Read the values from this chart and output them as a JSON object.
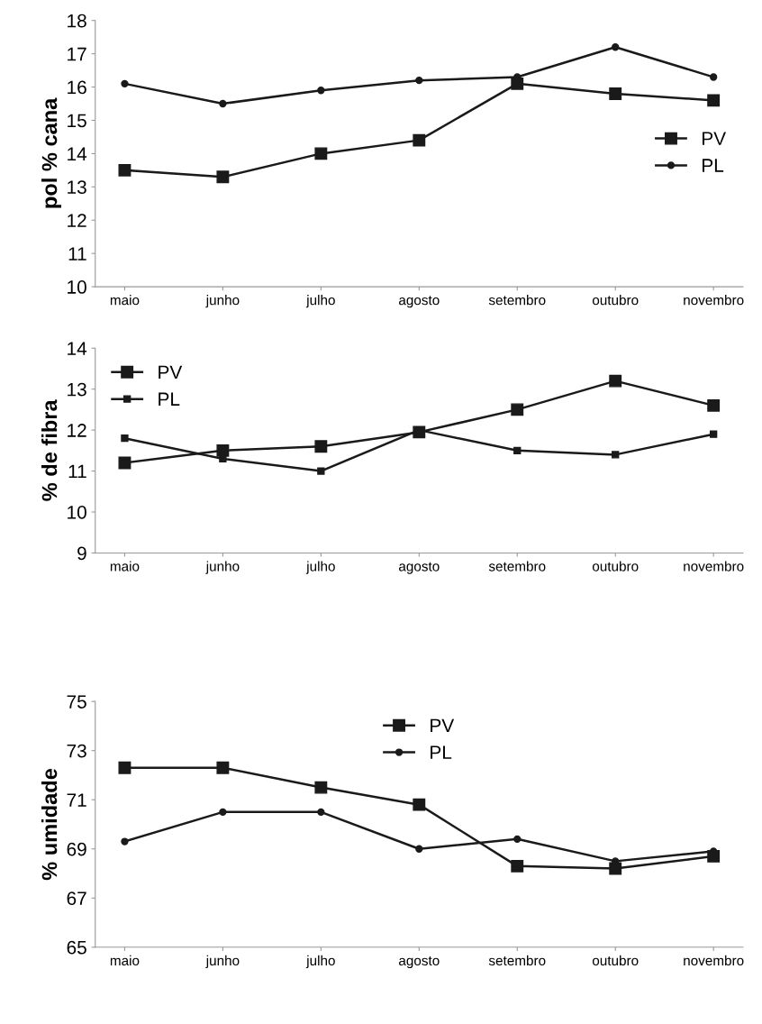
{
  "chart_data": [
    {
      "type": "line",
      "ylabel": "pol % cana",
      "categories": [
        "maio",
        "junho",
        "julho",
        "agosto",
        "setembro",
        "outubro",
        "novembro"
      ],
      "ylim": [
        10,
        18
      ],
      "yticks": [
        10,
        11,
        12,
        13,
        14,
        15,
        16,
        17,
        18
      ],
      "grid": false,
      "legend": "right",
      "series": [
        {
          "name": "PV",
          "color": "#1a1a1a",
          "marker": "square",
          "values": [
            13.5,
            13.3,
            14.0,
            14.4,
            16.1,
            15.8,
            15.6
          ]
        },
        {
          "name": "PL",
          "color": "#1a1a1a",
          "marker": "circle",
          "values": [
            16.1,
            15.5,
            15.9,
            16.2,
            16.3,
            17.2,
            16.3
          ]
        }
      ]
    },
    {
      "type": "line",
      "ylabel": "% de fibra",
      "categories": [
        "maio",
        "junho",
        "julho",
        "agosto",
        "setembro",
        "outubro",
        "novembro"
      ],
      "ylim": [
        9,
        14
      ],
      "yticks": [
        9,
        10,
        11,
        12,
        13,
        14
      ],
      "grid": false,
      "legend": "top left",
      "series": [
        {
          "name": "PV",
          "color": "#1a1a1a",
          "marker": "square",
          "values": [
            11.2,
            11.5,
            11.6,
            11.95,
            12.5,
            13.2,
            12.6
          ]
        },
        {
          "name": "PL",
          "color": "#1a1a1a",
          "marker": "square",
          "values": [
            11.8,
            11.3,
            11.0,
            12.0,
            11.5,
            11.4,
            11.9
          ]
        }
      ]
    },
    {
      "type": "line",
      "ylabel": "% umidade",
      "categories": [
        "maio",
        "junho",
        "julho",
        "agosto",
        "setembro",
        "outubro",
        "novembro"
      ],
      "ylim": [
        65,
        75
      ],
      "yticks": [
        65,
        67,
        69,
        71,
        73,
        75
      ],
      "grid": false,
      "legend": "top",
      "series": [
        {
          "name": "PV",
          "color": "#1a1a1a",
          "marker": "square",
          "values": [
            72.3,
            72.3,
            71.5,
            70.8,
            68.3,
            68.2,
            68.7
          ]
        },
        {
          "name": "PL",
          "color": "#1a1a1a",
          "marker": "circle",
          "values": [
            69.3,
            70.5,
            70.5,
            69.0,
            69.4,
            68.5,
            68.9
          ]
        }
      ]
    }
  ]
}
